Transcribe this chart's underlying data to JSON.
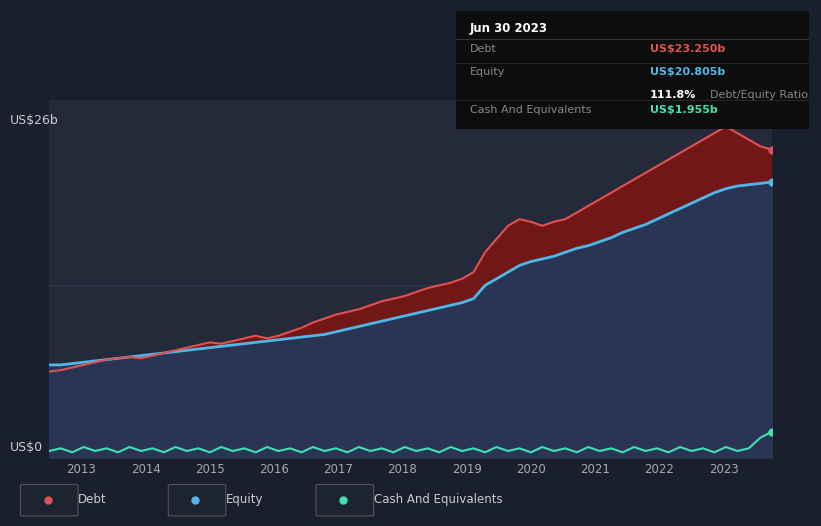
{
  "bg_color": "#1a1f2e",
  "plot_bg_color": "#252a3a",
  "ylabel_top": "US$26b",
  "ylabel_bottom": "US$0",
  "x_ticks": [
    2013,
    2014,
    2015,
    2016,
    2017,
    2018,
    2019,
    2020,
    2021,
    2022,
    2023
  ],
  "debt_color": "#e05252",
  "equity_color": "#4db8e8",
  "cash_color": "#40e0b0",
  "debt_fill_color": "#7a1515",
  "equity_fill_color": "#2a3555",
  "tooltip": {
    "title": "Jun 30 2023",
    "debt_label": "Debt",
    "debt_value": "US$23.250b",
    "equity_label": "Equity",
    "equity_value": "US$20.805b",
    "ratio_value": "111.8%",
    "ratio_label": "Debt/Equity Ratio",
    "cash_label": "Cash And Equivalents",
    "cash_value": "US$1.955b"
  },
  "legend_items": [
    "Debt",
    "Equity",
    "Cash And Equivalents"
  ],
  "ylim": [
    0,
    27
  ],
  "debt_data": [
    6.5,
    6.6,
    6.8,
    7.0,
    7.2,
    7.4,
    7.5,
    7.6,
    7.5,
    7.7,
    7.9,
    8.1,
    8.3,
    8.5,
    8.7,
    8.6,
    8.8,
    9.0,
    9.2,
    9.0,
    9.2,
    9.5,
    9.8,
    10.2,
    10.5,
    10.8,
    11.0,
    11.2,
    11.5,
    11.8,
    12.0,
    12.2,
    12.5,
    12.8,
    13.0,
    13.2,
    13.5,
    14.0,
    15.5,
    16.5,
    17.5,
    18.0,
    17.8,
    17.5,
    17.8,
    18.0,
    18.5,
    19.0,
    19.5,
    20.0,
    20.5,
    21.0,
    21.5,
    22.0,
    22.5,
    23.0,
    23.5,
    24.0,
    24.5,
    25.0,
    24.5,
    24.0,
    23.5,
    23.25
  ],
  "equity_data": [
    7.0,
    7.0,
    7.1,
    7.2,
    7.3,
    7.4,
    7.5,
    7.6,
    7.7,
    7.8,
    7.9,
    8.0,
    8.1,
    8.2,
    8.3,
    8.4,
    8.5,
    8.6,
    8.7,
    8.8,
    8.9,
    9.0,
    9.1,
    9.2,
    9.3,
    9.5,
    9.7,
    9.9,
    10.1,
    10.3,
    10.5,
    10.7,
    10.9,
    11.1,
    11.3,
    11.5,
    11.7,
    12.0,
    13.0,
    13.5,
    14.0,
    14.5,
    14.8,
    15.0,
    15.2,
    15.5,
    15.8,
    16.0,
    16.3,
    16.6,
    17.0,
    17.3,
    17.6,
    18.0,
    18.4,
    18.8,
    19.2,
    19.6,
    20.0,
    20.3,
    20.5,
    20.6,
    20.7,
    20.805
  ],
  "cash_data": [
    0.5,
    0.7,
    0.4,
    0.8,
    0.5,
    0.7,
    0.4,
    0.8,
    0.5,
    0.7,
    0.4,
    0.8,
    0.5,
    0.7,
    0.4,
    0.8,
    0.5,
    0.7,
    0.4,
    0.8,
    0.5,
    0.7,
    0.4,
    0.8,
    0.5,
    0.7,
    0.4,
    0.8,
    0.5,
    0.7,
    0.4,
    0.8,
    0.5,
    0.7,
    0.4,
    0.8,
    0.5,
    0.7,
    0.4,
    0.8,
    0.5,
    0.7,
    0.4,
    0.8,
    0.5,
    0.7,
    0.4,
    0.8,
    0.5,
    0.7,
    0.4,
    0.8,
    0.5,
    0.7,
    0.4,
    0.8,
    0.5,
    0.7,
    0.4,
    0.8,
    0.5,
    0.7,
    1.5,
    1.955
  ],
  "n_points": 64,
  "x_range_start": 2012.5,
  "x_range_end": 2023.75
}
